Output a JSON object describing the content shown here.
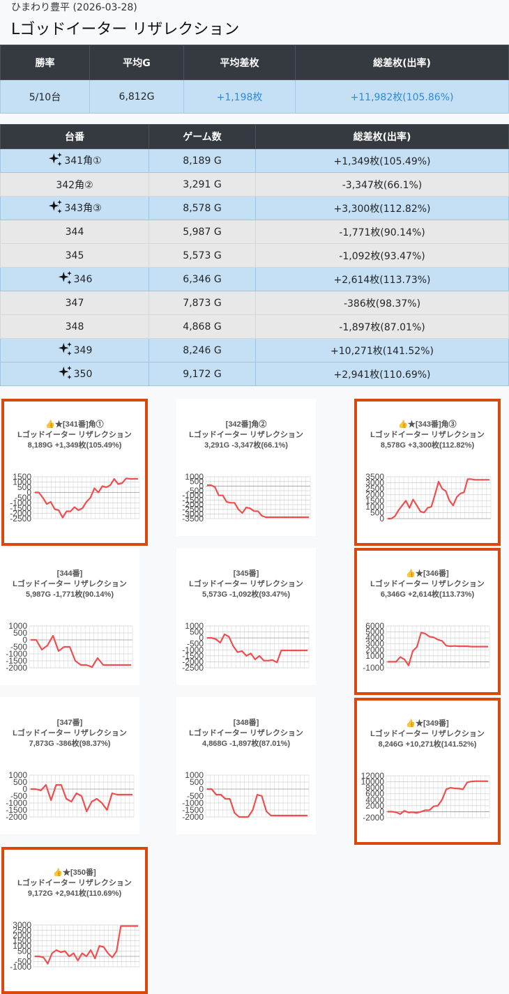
{
  "header": {
    "subtitle": "ひまわり豊平 (2026-03-28)",
    "title": "Lゴッドイーター リザレクション"
  },
  "summary": {
    "headers": [
      "勝率",
      "平均G",
      "平均差枚",
      "総差枚(出率)"
    ],
    "values": [
      "5/10台",
      "6,812G",
      "+1,198枚",
      "+11,982枚(105.86%)"
    ]
  },
  "machines_table": {
    "headers": [
      "台番",
      "ゲーム数",
      "総差枚(出率)"
    ],
    "rows": [
      {
        "highlight": true,
        "id": "341角①",
        "games": "8,189 G",
        "diff": "+1,349枚(105.49%)"
      },
      {
        "highlight": false,
        "id": "342角②",
        "games": "3,291 G",
        "diff": "-3,347枚(66.1%)"
      },
      {
        "highlight": true,
        "id": "343角③",
        "games": "8,578 G",
        "diff": "+3,300枚(112.82%)"
      },
      {
        "highlight": false,
        "id": "344",
        "games": "5,987 G",
        "diff": "-1,771枚(90.14%)"
      },
      {
        "highlight": false,
        "id": "345",
        "games": "5,573 G",
        "diff": "-1,092枚(93.47%)"
      },
      {
        "highlight": true,
        "id": "346",
        "games": "6,346 G",
        "diff": "+2,614枚(113.73%)"
      },
      {
        "highlight": false,
        "id": "347",
        "games": "7,873 G",
        "diff": "-386枚(98.37%)"
      },
      {
        "highlight": false,
        "id": "348",
        "games": "4,868 G",
        "diff": "-1,897枚(87.01%)"
      },
      {
        "highlight": true,
        "id": "349",
        "games": "8,246 G",
        "diff": "+10,271枚(141.52%)"
      },
      {
        "highlight": true,
        "id": "350",
        "games": "9,172 G",
        "diff": "+2,941枚(110.69%)"
      }
    ]
  },
  "colors": {
    "accent_blue": "#2a8ae0",
    "highlight_border": "#d9480f",
    "line": "#f04e4e"
  },
  "chart_data": [
    {
      "type": "line",
      "highlight": true,
      "title_line1": "👍★[341番]角①",
      "title_line2": "Lゴッドイーター リザレクション",
      "title_line3": "8,189G +1,349枚(105.49%)",
      "ylim": [
        -2500,
        1500
      ],
      "ticks": [
        1500,
        1000,
        500,
        0,
        -500,
        -1000,
        -1500,
        -2000,
        -2500
      ],
      "values": [
        0,
        0,
        -500,
        -1100,
        -900,
        -1600,
        -1700,
        -2400,
        -1800,
        -1800,
        -1400,
        -1700,
        -1500,
        -900,
        -500,
        400,
        0,
        600,
        500,
        700,
        1300,
        800,
        900,
        1350,
        1300,
        1300,
        1300
      ]
    },
    {
      "type": "line",
      "highlight": false,
      "title_line1": "[342番]角②",
      "title_line2": "Lゴッドイーター リザレクション",
      "title_line3": "3,291G -3,347枚(66.1%)",
      "ylim": [
        -3500,
        1000
      ],
      "ticks": [
        1000,
        500,
        0,
        -500,
        -1000,
        -1500,
        -2000,
        -2500,
        -3000,
        -3500
      ],
      "values": [
        100,
        100,
        -100,
        -1000,
        -1000,
        -1700,
        -1800,
        -1800,
        -2500,
        -2900,
        -2300,
        -2400,
        -2700,
        -2700,
        -3200,
        -3350,
        -3350,
        -3350,
        -3350,
        -3350,
        -3350,
        -3350,
        -3350,
        -3350,
        -3350,
        -3350,
        -3350
      ]
    },
    {
      "type": "line",
      "highlight": true,
      "title_line1": "👍★[343番]角③",
      "title_line2": "Lゴッドイーター リザレクション",
      "title_line3": "8,578G +3,300枚(112.82%)",
      "ylim": [
        0,
        3500
      ],
      "ticks": [
        3500,
        3000,
        2500,
        2000,
        1500,
        1000,
        500,
        0
      ],
      "values": [
        0,
        0,
        200,
        700,
        1100,
        1500,
        900,
        1600,
        1100,
        600,
        500,
        900,
        1000,
        2000,
        3100,
        2500,
        2300,
        1500,
        1100,
        1800,
        2100,
        2200,
        3300,
        3300,
        3250,
        3250,
        3250,
        3250,
        3250
      ]
    },
    {
      "type": "line",
      "highlight": false,
      "title_line1": "[344番]",
      "title_line2": "Lゴッドイーター リザレクション",
      "title_line3": "5,987G -1,771枚(90.14%)",
      "ylim": [
        -2000,
        1000
      ],
      "ticks": [
        1000,
        500,
        0,
        -500,
        -1000,
        -1500,
        -2000
      ],
      "values": [
        0,
        0,
        -700,
        -400,
        300,
        -800,
        -500,
        -500,
        -1500,
        -1800,
        -1800,
        -1950,
        -1300,
        -1800,
        -1800,
        -1800,
        -1800,
        -1800,
        -1800
      ]
    },
    {
      "type": "line",
      "highlight": false,
      "title_line1": "[345番]",
      "title_line2": "Lゴッドイーター リザレクション",
      "title_line3": "5,573G -1,092枚(93.47%)",
      "ylim": [
        -2500,
        1000
      ],
      "ticks": [
        1000,
        500,
        0,
        -500,
        -1000,
        -1500,
        -2000,
        -2500
      ],
      "values": [
        0,
        0,
        -100,
        -400,
        300,
        100,
        -700,
        -1200,
        -1100,
        -1500,
        -1300,
        -1800,
        -1500,
        -1900,
        -1900,
        -1850,
        -2050,
        -1050,
        -1050,
        -1050,
        -1050,
        -1050,
        -1050,
        -1050
      ]
    },
    {
      "type": "line",
      "highlight": true,
      "title_line1": "👍★[346番]",
      "title_line2": "Lゴッドイーター リザレクション",
      "title_line3": "6,346G +2,614枚(113.73%)",
      "ylim": [
        -1000,
        6000
      ],
      "ticks": [
        6000,
        5000,
        4000,
        3000,
        2000,
        1000,
        0,
        -1000
      ],
      "values": [
        0,
        0,
        0,
        800,
        400,
        -600,
        1800,
        2500,
        4900,
        4700,
        4200,
        4100,
        3700,
        3500,
        2700,
        2600,
        2650,
        2600,
        2600,
        2600,
        2550,
        2550,
        2550,
        2550,
        2550
      ]
    },
    {
      "type": "line",
      "highlight": false,
      "title_line1": "[347番]",
      "title_line2": "Lゴッドイーター リザレクション",
      "title_line3": "7,873G -386枚(98.37%)",
      "ylim": [
        -2000,
        1000
      ],
      "ticks": [
        1000,
        500,
        0,
        -500,
        -1000,
        -1500,
        -2000
      ],
      "values": [
        0,
        0,
        -100,
        300,
        -800,
        300,
        300,
        -700,
        -900,
        -300,
        -500,
        -1600,
        -900,
        -700,
        -1000,
        -1500,
        -300,
        -400,
        -400,
        -400,
        -400
      ]
    },
    {
      "type": "line",
      "highlight": false,
      "title_line1": "[348番]",
      "title_line2": "Lゴッドイーター リザレクション",
      "title_line3": "4,868G -1,897枚(87.01%)",
      "ylim": [
        -2000,
        1000
      ],
      "ticks": [
        1000,
        500,
        0,
        -500,
        -1000,
        -1500,
        -2000
      ],
      "values": [
        0,
        0,
        -400,
        -400,
        -700,
        -700,
        -1700,
        -2000,
        -2000,
        -2000,
        -1500,
        -400,
        -500,
        -1600,
        -1900,
        -1900,
        -1900,
        -1900,
        -1900,
        -1900,
        -1900,
        -1900,
        -1900
      ]
    },
    {
      "type": "line",
      "highlight": true,
      "title_line1": "👍★[349番]",
      "title_line2": "Lゴッドイーター リザレクション",
      "title_line3": "8,246G +10,271枚(141.52%)",
      "ylim": [
        -2000,
        12000
      ],
      "ticks": [
        12000,
        10000,
        8000,
        6000,
        4000,
        2000,
        0,
        -2000
      ],
      "values": [
        0,
        0,
        -200,
        -800,
        300,
        -300,
        -200,
        -400,
        0,
        500,
        500,
        1800,
        2000,
        4000,
        7500,
        8000,
        7800,
        7700,
        7500,
        9800,
        10100,
        10200,
        10200,
        10200,
        10200
      ]
    },
    {
      "type": "line",
      "highlight": true,
      "title_line1": "👍★[350番]",
      "title_line2": "Lゴッドイーター リザレクション",
      "title_line3": "9,172G +2,941枚(110.69%)",
      "ylim": [
        -1000,
        3000
      ],
      "ticks": [
        3000,
        2500,
        2000,
        1500,
        1000,
        500,
        0,
        -500,
        -1000
      ],
      "values": [
        0,
        0,
        -100,
        -700,
        300,
        600,
        400,
        500,
        0,
        300,
        -400,
        300,
        0,
        600,
        -200,
        1000,
        900,
        300,
        -100,
        500,
        2900,
        2900,
        2900,
        2900,
        2900
      ]
    }
  ]
}
